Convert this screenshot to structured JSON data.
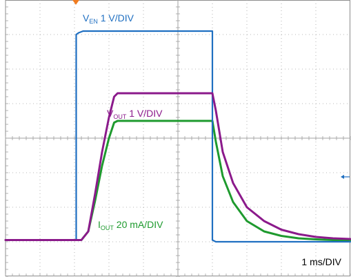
{
  "chart_data": {
    "type": "line",
    "grid": true,
    "divisions": {
      "x": 10,
      "y": 8
    },
    "time_per_div": "1 ms/DIV",
    "x_range_div": [
      0,
      10
    ],
    "y_range_div": [
      0,
      8
    ],
    "colors": {
      "ven": "#1f6fc1",
      "vout": "#8b1a8b",
      "iout": "#1e9a2e",
      "grid": "#a0a0a0",
      "border": "#8c8c8c",
      "trigger": "#f07c21"
    },
    "series": [
      {
        "key": "ven",
        "label_main": "V",
        "label_sub": "EN",
        "label_rest": " 1 V/DIV",
        "x_div": [
          0,
          2.05,
          2.05,
          2.12,
          2.25,
          2.5,
          6.0,
          6.0,
          6.1,
          10
        ],
        "y_div": [
          1.05,
          1.05,
          7.0,
          7.05,
          7.1,
          7.1,
          7.1,
          1.05,
          1.0,
          1.0
        ]
      },
      {
        "key": "vout",
        "label_main": "V",
        "label_sub": "OUT",
        "label_rest": " 1 V/DIV",
        "x_div": [
          0,
          2.2,
          2.4,
          2.6,
          2.8,
          3.0,
          3.15,
          3.25,
          5.9,
          6.0,
          6.1,
          6.3,
          6.6,
          7.0,
          7.5,
          8.0,
          8.5,
          9.0,
          9.5,
          10
        ],
        "y_div": [
          1.05,
          1.05,
          1.3,
          2.4,
          3.6,
          4.6,
          5.2,
          5.3,
          5.3,
          5.3,
          4.8,
          3.6,
          2.7,
          2.0,
          1.6,
          1.35,
          1.22,
          1.14,
          1.1,
          1.08
        ]
      },
      {
        "key": "iout",
        "label_main": "I",
        "label_sub": "OUT",
        "label_rest": " 20 mA/DIV",
        "x_div": [
          0,
          2.2,
          2.4,
          2.6,
          2.8,
          3.0,
          3.15,
          3.25,
          5.9,
          6.0,
          6.1,
          6.3,
          6.6,
          7.0,
          7.5,
          8.0,
          8.5,
          9.0,
          9.5,
          10
        ],
        "y_div": [
          1.05,
          1.05,
          1.3,
          2.2,
          3.2,
          4.0,
          4.45,
          4.5,
          4.5,
          4.5,
          3.9,
          2.9,
          2.15,
          1.6,
          1.3,
          1.17,
          1.1,
          1.07,
          1.05,
          1.05
        ]
      }
    ]
  }
}
